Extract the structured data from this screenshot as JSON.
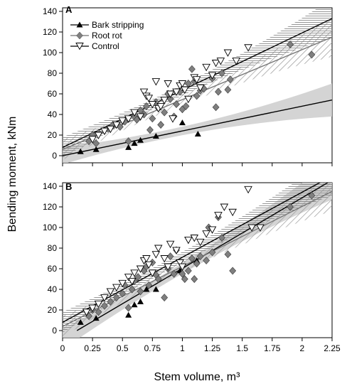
{
  "chart_data": [
    {
      "type": "scatter",
      "panel_label": "A",
      "xlim": [
        0,
        2.25
      ],
      "ylim": [
        0,
        140
      ],
      "x_ticks": [
        "0",
        "0.25",
        "0.5",
        "0.75",
        "1",
        "1.25",
        "1.5",
        "1.75",
        "2",
        "2.25"
      ],
      "y_ticks": [
        "0",
        "20",
        "40",
        "60",
        "80",
        "100",
        "120",
        "140"
      ],
      "legend_position": "top-left",
      "series": [
        {
          "name": "Bark stripping",
          "marker": "filled-triangle",
          "color": "#000000",
          "points": [
            [
              0.15,
              4
            ],
            [
              0.28,
              6
            ],
            [
              0.55,
              8
            ],
            [
              0.6,
              12
            ],
            [
              0.65,
              15
            ],
            [
              0.78,
              19
            ],
            [
              1.0,
              32
            ],
            [
              1.13,
              21
            ]
          ],
          "fit": [
            [
              0,
              0
            ],
            [
              2.25,
              54
            ]
          ],
          "band_color": "#cfcfcf"
        },
        {
          "name": "Root rot",
          "marker": "grey-diamond",
          "color": "#808080",
          "points": [
            [
              0.22,
              14
            ],
            [
              0.25,
              20
            ],
            [
              0.28,
              12
            ],
            [
              0.3,
              22
            ],
            [
              0.38,
              26
            ],
            [
              0.42,
              30
            ],
            [
              0.48,
              28
            ],
            [
              0.52,
              33
            ],
            [
              0.55,
              14
            ],
            [
              0.6,
              38
            ],
            [
              0.62,
              35
            ],
            [
              0.65,
              44
            ],
            [
              0.68,
              40
            ],
            [
              0.7,
              48
            ],
            [
              0.73,
              25
            ],
            [
              0.75,
              36
            ],
            [
              0.78,
              52
            ],
            [
              0.8,
              46
            ],
            [
              0.82,
              30
            ],
            [
              0.85,
              42
            ],
            [
              0.88,
              60
            ],
            [
              0.9,
              55
            ],
            [
              0.93,
              38
            ],
            [
              0.95,
              50
            ],
            [
              0.98,
              62
            ],
            [
              1.0,
              45
            ],
            [
              1.03,
              48
            ],
            [
              1.05,
              70
            ],
            [
              1.08,
              84
            ],
            [
              1.1,
              72
            ],
            [
              1.12,
              58
            ],
            [
              1.15,
              63
            ],
            [
              1.18,
              65
            ],
            [
              1.25,
              75
            ],
            [
              1.28,
              47
            ],
            [
              1.3,
              62
            ],
            [
              1.33,
              80
            ],
            [
              1.38,
              64
            ],
            [
              1.4,
              74
            ],
            [
              1.9,
              108
            ],
            [
              2.08,
              98
            ]
          ],
          "fit": [
            [
              0,
              6
            ],
            [
              2.25,
              115
            ]
          ],
          "band_color": "#9e9e9e"
        },
        {
          "name": "Control",
          "marker": "open-triangle-down",
          "color": "#ffffff",
          "points": [
            [
              0.25,
              16
            ],
            [
              0.3,
              20
            ],
            [
              0.35,
              24
            ],
            [
              0.4,
              26
            ],
            [
              0.45,
              30
            ],
            [
              0.5,
              34
            ],
            [
              0.55,
              36
            ],
            [
              0.6,
              42
            ],
            [
              0.65,
              38
            ],
            [
              0.68,
              62
            ],
            [
              0.7,
              58
            ],
            [
              0.72,
              56
            ],
            [
              0.75,
              50
            ],
            [
              0.78,
              72
            ],
            [
              0.8,
              46
            ],
            [
              0.82,
              48
            ],
            [
              0.85,
              54
            ],
            [
              0.88,
              70
            ],
            [
              0.9,
              60
            ],
            [
              0.92,
              36
            ],
            [
              0.95,
              62
            ],
            [
              0.98,
              68
            ],
            [
              1.0,
              70
            ],
            [
              1.02,
              64
            ],
            [
              1.05,
              55
            ],
            [
              1.1,
              76
            ],
            [
              1.12,
              74
            ],
            [
              1.15,
              66
            ],
            [
              1.2,
              86
            ],
            [
              1.25,
              78
            ],
            [
              1.28,
              90
            ],
            [
              1.32,
              92
            ],
            [
              1.38,
              100
            ],
            [
              1.45,
              92
            ],
            [
              1.55,
              105
            ]
          ],
          "fit": [
            [
              0,
              8
            ],
            [
              2.25,
              133
            ]
          ],
          "band_color": "#bdbdbd"
        }
      ]
    },
    {
      "type": "scatter",
      "panel_label": "B",
      "xlim": [
        0,
        2.25
      ],
      "ylim": [
        0,
        140
      ],
      "x_ticks": [
        "0",
        "0.25",
        "0.5",
        "0.75",
        "1",
        "1.25",
        "1.5",
        "1.75",
        "2",
        "2.25"
      ],
      "y_ticks": [
        "0",
        "20",
        "40",
        "60",
        "80",
        "100",
        "120",
        "140"
      ],
      "xlabel": "Stem volume, m³",
      "ylabel": "Bending moment, kNm",
      "series": [
        {
          "name": "Bark stripping",
          "marker": "filled-triangle",
          "color": "#000000",
          "points": [
            [
              0.15,
              8
            ],
            [
              0.28,
              12
            ],
            [
              0.55,
              15
            ],
            [
              0.6,
              25
            ],
            [
              0.65,
              28
            ],
            [
              0.7,
              40
            ],
            [
              0.78,
              40
            ],
            [
              0.98,
              58
            ],
            [
              1.12,
              68
            ]
          ],
          "fit": [
            [
              0.12,
              0
            ],
            [
              2.25,
              146
            ]
          ],
          "band_color": "#c8c8c8"
        },
        {
          "name": "Root rot",
          "marker": "grey-diamond",
          "color": "#808080",
          "points": [
            [
              0.22,
              14
            ],
            [
              0.25,
              20
            ],
            [
              0.3,
              18
            ],
            [
              0.35,
              24
            ],
            [
              0.4,
              28
            ],
            [
              0.45,
              32
            ],
            [
              0.5,
              36
            ],
            [
              0.52,
              44
            ],
            [
              0.55,
              22
            ],
            [
              0.58,
              40
            ],
            [
              0.6,
              48
            ],
            [
              0.63,
              52
            ],
            [
              0.65,
              38
            ],
            [
              0.68,
              58
            ],
            [
              0.7,
              62
            ],
            [
              0.72,
              44
            ],
            [
              0.75,
              66
            ],
            [
              0.78,
              54
            ],
            [
              0.8,
              50
            ],
            [
              0.85,
              32
            ],
            [
              0.88,
              60
            ],
            [
              0.9,
              72
            ],
            [
              0.93,
              55
            ],
            [
              0.95,
              78
            ],
            [
              1.0,
              55
            ],
            [
              1.02,
              50
            ],
            [
              1.05,
              58
            ],
            [
              1.08,
              70
            ],
            [
              1.1,
              50
            ],
            [
              1.12,
              65
            ],
            [
              1.15,
              72
            ],
            [
              1.2,
              68
            ],
            [
              1.22,
              100
            ],
            [
              1.25,
              76
            ],
            [
              1.3,
              110
            ],
            [
              1.33,
              90
            ],
            [
              1.38,
              74
            ],
            [
              1.42,
              58
            ],
            [
              1.9,
              120
            ],
            [
              2.08,
              131
            ]
          ],
          "fit": [
            [
              0,
              4
            ],
            [
              2.25,
              135
            ]
          ],
          "band_color": "#9e9e9e"
        },
        {
          "name": "Control",
          "marker": "open-triangle-down",
          "color": "#ffffff",
          "points": [
            [
              0.2,
              18
            ],
            [
              0.25,
              22
            ],
            [
              0.3,
              26
            ],
            [
              0.35,
              32
            ],
            [
              0.4,
              38
            ],
            [
              0.45,
              42
            ],
            [
              0.5,
              46
            ],
            [
              0.55,
              52
            ],
            [
              0.58,
              48
            ],
            [
              0.6,
              56
            ],
            [
              0.65,
              60
            ],
            [
              0.68,
              68
            ],
            [
              0.7,
              70
            ],
            [
              0.72,
              64
            ],
            [
              0.75,
              56
            ],
            [
              0.78,
              74
            ],
            [
              0.8,
              80
            ],
            [
              0.85,
              70
            ],
            [
              0.88,
              62
            ],
            [
              0.9,
              84
            ],
            [
              0.95,
              78
            ],
            [
              0.98,
              66
            ],
            [
              1.0,
              62
            ],
            [
              1.05,
              88
            ],
            [
              1.1,
              90
            ],
            [
              1.15,
              86
            ],
            [
              1.2,
              94
            ],
            [
              1.25,
              98
            ],
            [
              1.3,
              112
            ],
            [
              1.35,
              120
            ],
            [
              1.42,
              115
            ],
            [
              1.55,
              137
            ],
            [
              1.58,
              100
            ],
            [
              1.65,
              100
            ]
          ],
          "fit": [
            [
              0,
              8
            ],
            [
              2.25,
              150
            ]
          ],
          "band_color": "#bdbdbd"
        }
      ]
    }
  ]
}
